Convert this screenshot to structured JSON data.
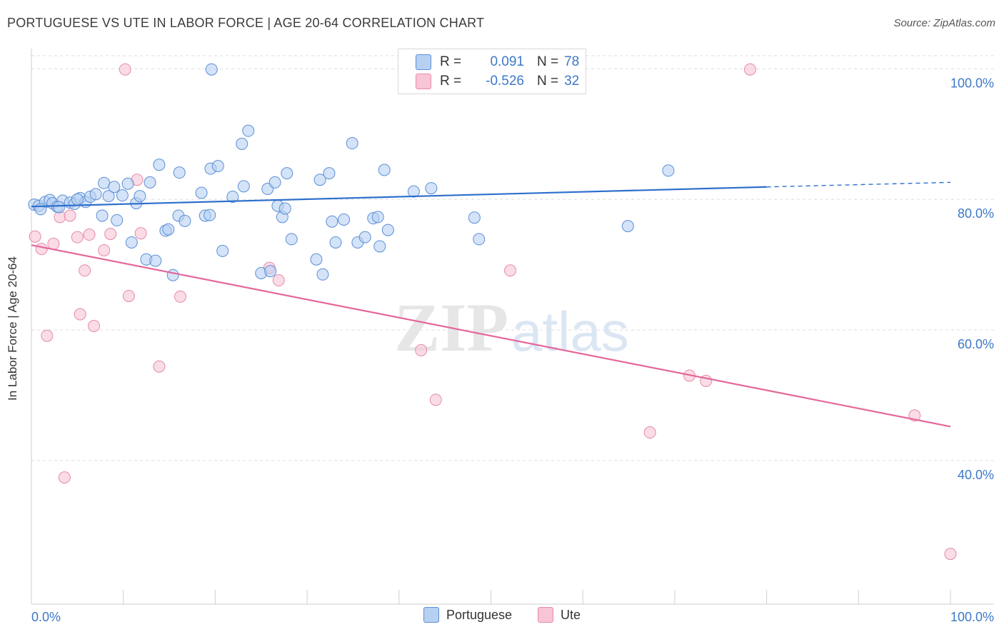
{
  "title": "PORTUGUESE VS UTE IN LABOR FORCE | AGE 20-64 CORRELATION CHART",
  "source": "Source: ZipAtlas.com",
  "watermark": {
    "zip": "ZIP",
    "atlas": "atlas"
  },
  "colors": {
    "portuguese": "#5b8fd6",
    "portuguese_fill": "#b7d0f2",
    "portuguese_line": "#2e6fcc",
    "ute": "#e78aa8",
    "ute_fill": "#f7c5d5",
    "ute_line": "#e4679a",
    "tick_label": "#3d78c8"
  },
  "stats": {
    "r_label": "R =",
    "n_label": "N =",
    "portuguese": {
      "r": "0.091",
      "n": "78"
    },
    "ute": {
      "r": "-0.526",
      "n": "32"
    }
  },
  "legend": {
    "portuguese": "Portuguese",
    "ute": "Ute"
  },
  "chart_data": {
    "type": "scatter",
    "title": "PORTUGUESE VS UTE IN LABOR FORCE | AGE 20-64 CORRELATION CHART",
    "xlabel": "",
    "ylabel": "In Labor Force | Age 20-64",
    "xlim": [
      0,
      100
    ],
    "ylim": [
      18,
      102
    ],
    "x_tick_labels": [
      "0.0%",
      "100.0%"
    ],
    "y_ticks": [
      40,
      60,
      80,
      100
    ],
    "y_tick_labels": [
      "40.0%",
      "60.0%",
      "80.0%",
      "100.0%"
    ],
    "grid": true,
    "legend_position": "bottom",
    "series": [
      {
        "name": "Portuguese",
        "trend": {
          "x": [
            0,
            80,
            100
          ],
          "y": [
            78.9,
            81.9,
            82.6
          ],
          "dashed_from_x": 80
        },
        "points": [
          [
            0.3,
            79.2
          ],
          [
            0.8,
            79.0
          ],
          [
            1.5,
            79.6
          ],
          [
            2.0,
            79.9
          ],
          [
            2.3,
            79.4
          ],
          [
            2.8,
            78.9
          ],
          [
            3.4,
            79.8
          ],
          [
            4.2,
            79.5
          ],
          [
            4.7,
            79.3
          ],
          [
            5.3,
            80.2
          ],
          [
            5.9,
            79.6
          ],
          [
            6.4,
            80.4
          ],
          [
            7.0,
            80.8
          ],
          [
            7.7,
            77.5
          ],
          [
            7.9,
            82.5
          ],
          [
            8.4,
            80.5
          ],
          [
            9.0,
            81.9
          ],
          [
            9.3,
            76.8
          ],
          [
            9.9,
            80.6
          ],
          [
            10.5,
            82.4
          ],
          [
            10.9,
            73.4
          ],
          [
            11.4,
            79.4
          ],
          [
            11.8,
            80.5
          ],
          [
            12.5,
            70.8
          ],
          [
            12.9,
            82.6
          ],
          [
            13.5,
            70.6
          ],
          [
            13.9,
            85.3
          ],
          [
            14.6,
            75.2
          ],
          [
            14.9,
            75.4
          ],
          [
            15.4,
            68.4
          ],
          [
            16.0,
            77.5
          ],
          [
            16.1,
            84.1
          ],
          [
            16.7,
            76.7
          ],
          [
            18.5,
            81.0
          ],
          [
            18.9,
            77.5
          ],
          [
            19.4,
            77.6
          ],
          [
            19.6,
            99.9
          ],
          [
            19.5,
            84.7
          ],
          [
            20.3,
            85.1
          ],
          [
            20.8,
            72.1
          ],
          [
            21.9,
            80.4
          ],
          [
            22.9,
            88.5
          ],
          [
            23.1,
            82.0
          ],
          [
            23.6,
            90.5
          ],
          [
            25.0,
            68.7
          ],
          [
            25.7,
            81.6
          ],
          [
            26.0,
            69.0
          ],
          [
            26.5,
            82.6
          ],
          [
            26.8,
            79.0
          ],
          [
            27.3,
            77.3
          ],
          [
            27.6,
            78.6
          ],
          [
            27.8,
            84.0
          ],
          [
            28.3,
            73.9
          ],
          [
            31.0,
            70.8
          ],
          [
            31.4,
            83.0
          ],
          [
            31.7,
            68.5
          ],
          [
            32.4,
            84.0
          ],
          [
            32.7,
            76.6
          ],
          [
            33.1,
            73.4
          ],
          [
            34.0,
            76.9
          ],
          [
            34.9,
            88.6
          ],
          [
            35.5,
            73.4
          ],
          [
            36.3,
            74.2
          ],
          [
            37.2,
            77.1
          ],
          [
            37.7,
            77.3
          ],
          [
            37.9,
            72.8
          ],
          [
            38.4,
            84.5
          ],
          [
            38.8,
            75.3
          ],
          [
            41.6,
            81.2
          ],
          [
            43.5,
            81.7
          ],
          [
            45.0,
            99.9
          ],
          [
            48.2,
            77.2
          ],
          [
            48.7,
            73.9
          ],
          [
            64.9,
            75.9
          ],
          [
            69.3,
            84.4
          ],
          [
            1.0,
            78.5
          ],
          [
            5.0,
            80.0
          ],
          [
            3.0,
            78.8
          ]
        ]
      },
      {
        "name": "Ute",
        "trend": {
          "x": [
            0,
            100
          ],
          "y": [
            73.0,
            45.2
          ]
        },
        "points": [
          [
            0.4,
            74.3
          ],
          [
            1.1,
            72.4
          ],
          [
            1.7,
            59.1
          ],
          [
            2.4,
            73.2
          ],
          [
            3.1,
            77.3
          ],
          [
            3.6,
            37.4
          ],
          [
            4.2,
            77.5
          ],
          [
            5.0,
            74.2
          ],
          [
            5.3,
            62.4
          ],
          [
            5.8,
            69.1
          ],
          [
            6.3,
            74.6
          ],
          [
            6.8,
            60.6
          ],
          [
            7.9,
            72.2
          ],
          [
            8.6,
            74.7
          ],
          [
            10.2,
            99.9
          ],
          [
            10.6,
            65.2
          ],
          [
            11.5,
            83.0
          ],
          [
            11.9,
            74.8
          ],
          [
            13.9,
            54.4
          ],
          [
            16.2,
            65.1
          ],
          [
            25.9,
            69.5
          ],
          [
            26.9,
            67.6
          ],
          [
            42.4,
            56.9
          ],
          [
            44.0,
            49.3
          ],
          [
            47.3,
            99.9
          ],
          [
            52.1,
            69.1
          ],
          [
            67.3,
            44.3
          ],
          [
            71.6,
            53.0
          ],
          [
            73.4,
            52.2
          ],
          [
            78.2,
            99.9
          ],
          [
            96.1,
            46.9
          ],
          [
            100.0,
            25.7
          ]
        ]
      }
    ]
  }
}
